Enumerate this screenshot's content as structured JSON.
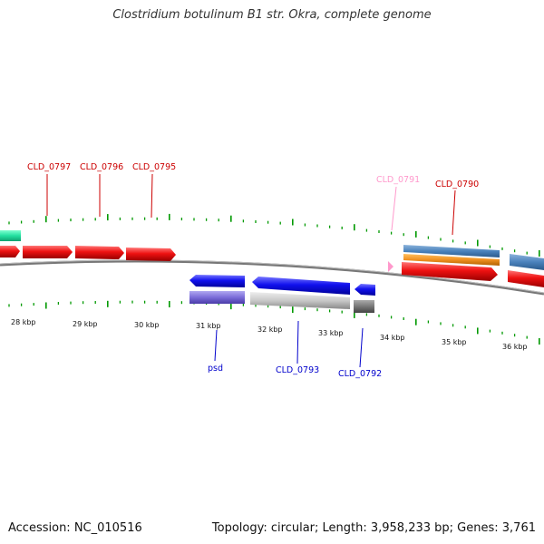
{
  "title": "Clostridium botulinum B1 str. Okra, complete genome",
  "accession": "Accession: NC_010516",
  "topology": "Topology: circular; Length: 3,958,233 bp; Genes: 3,761",
  "ruler_labels": [
    "28 kbp",
    "29 kbp",
    "30 kbp",
    "31 kbp",
    "32 kbp",
    "33 kbp",
    "34 kbp",
    "35 kbp",
    "36 kbp"
  ],
  "gene_labels_top": [
    {
      "label": "CLD_0797",
      "color": "#cc0000"
    },
    {
      "label": "CLD_0796",
      "color": "#cc0000"
    },
    {
      "label": "CLD_0795",
      "color": "#cc0000"
    },
    {
      "label": "CLD_0791",
      "color": "#ff99cc"
    },
    {
      "label": "CLD_0790",
      "color": "#cc0000"
    }
  ],
  "gene_labels_bottom": [
    {
      "label": "psd",
      "color": "#0000cc"
    },
    {
      "label": "CLD_0793",
      "color": "#0000cc"
    },
    {
      "label": "CLD_0792",
      "color": "#0000cc"
    }
  ],
  "colors": {
    "forward_gene": "#ee1111",
    "reverse_gene": "#1111ee",
    "backbone": "#777777",
    "tick": "#009900"
  }
}
